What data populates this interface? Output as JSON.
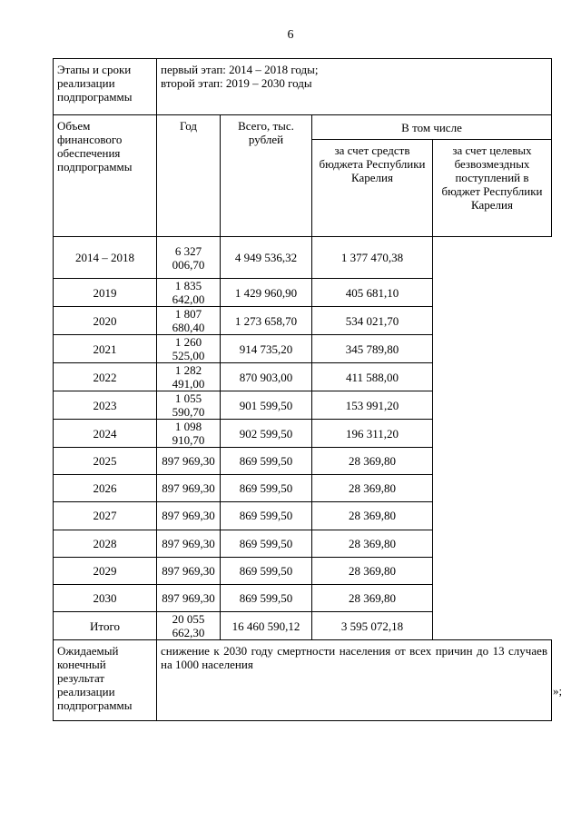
{
  "page_number": "6",
  "stages": {
    "label": "Этапы и сроки реализации подпрограммы",
    "lines": [
      "первый этап: 2014 – 2018 годы;",
      "второй этап: 2019 – 2030 годы"
    ]
  },
  "financing": {
    "label": "Объем финансового обеспечения подпрограммы",
    "headers": {
      "year": "Год",
      "total": "Всего, тыс. рублей",
      "including": "В том числе",
      "budget": "за счет средств бюджета Республики Карелия",
      "targeted": "за счет целевых безвозмездных поступлений в бюджет Республики Карелия"
    },
    "rows": [
      {
        "year": "2014 – 2018",
        "total": "6 327 006,70",
        "budget": "4 949 536,32",
        "targeted": "1 377 470,38"
      },
      {
        "year": "2019",
        "total": "1 835 642,00",
        "budget": "1 429 960,90",
        "targeted": "405 681,10"
      },
      {
        "year": "2020",
        "total": "1 807 680,40",
        "budget": "1 273 658,70",
        "targeted": "534 021,70"
      },
      {
        "year": "2021",
        "total": "1 260 525,00",
        "budget": "914 735,20",
        "targeted": "345 789,80"
      },
      {
        "year": "2022",
        "total": "1 282 491,00",
        "budget": "870 903,00",
        "targeted": "411 588,00"
      },
      {
        "year": "2023",
        "total": "1 055 590,70",
        "budget": "901 599,50",
        "targeted": "153 991,20"
      },
      {
        "year": "2024",
        "total": "1 098 910,70",
        "budget": "902 599,50",
        "targeted": "196 311,20"
      },
      {
        "year": "2025",
        "total": "897 969,30",
        "budget": "869 599,50",
        "targeted": "28 369,80"
      },
      {
        "year": "2026",
        "total": "897 969,30",
        "budget": "869 599,50",
        "targeted": "28 369,80"
      },
      {
        "year": "2027",
        "total": "897 969,30",
        "budget": "869 599,50",
        "targeted": "28 369,80"
      },
      {
        "year": "2028",
        "total": "897 969,30",
        "budget": "869 599,50",
        "targeted": "28 369,80"
      },
      {
        "year": "2029",
        "total": "897 969,30",
        "budget": "869 599,50",
        "targeted": "28 369,80"
      },
      {
        "year": "2030",
        "total": "897 969,30",
        "budget": "869 599,50",
        "targeted": "28 369,80"
      },
      {
        "year": "Итого",
        "total": "20 055 662,30",
        "budget": "16 460 590,12",
        "targeted": "3 595 072,18"
      }
    ]
  },
  "result": {
    "label": "Ожидаемый конечный результат реализации подпрограммы",
    "text": "снижение к 2030 году смертности населения от всех причин до 13 случаев на 1000 населения"
  },
  "closing_mark": "»;"
}
